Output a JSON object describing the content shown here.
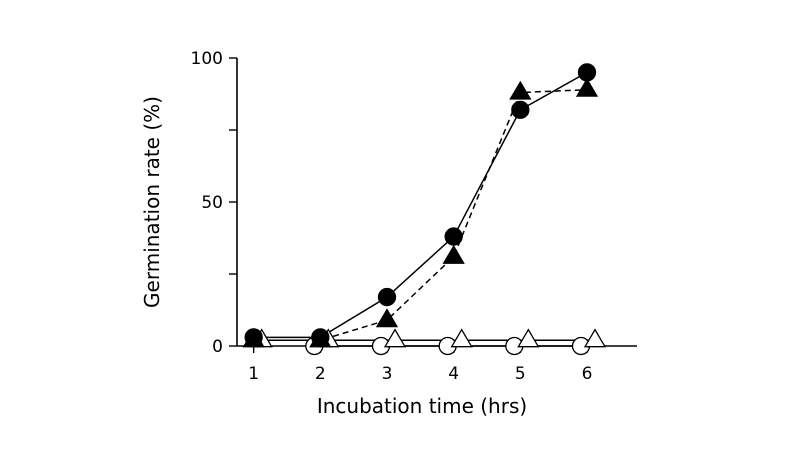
{
  "chart_data": {
    "type": "scatter",
    "xlabel": "Incubation time (hrs)",
    "ylabel": "Germination rate (%)",
    "xlim": [
      0.75,
      6.75
    ],
    "ylim": [
      0,
      100
    ],
    "x_ticks": [
      "1",
      "2",
      "3",
      "4",
      "5",
      "6"
    ],
    "y_ticks": [
      "0",
      "50",
      "100"
    ],
    "grid": false,
    "series": [
      {
        "marker": "filled-circle",
        "line": "solid",
        "color": "#000000",
        "points": [
          [
            1,
            3
          ],
          [
            2,
            3
          ],
          [
            3,
            17
          ],
          [
            4,
            38
          ],
          [
            5,
            82
          ],
          [
            6,
            95
          ]
        ]
      },
      {
        "marker": "filled-triangle",
        "line": "dashed",
        "color": "#000000",
        "points": [
          [
            1,
            2
          ],
          [
            2,
            2
          ],
          [
            3,
            9
          ],
          [
            4,
            31
          ],
          [
            5,
            88
          ],
          [
            6,
            89
          ]
        ]
      },
      {
        "marker": "open-circle",
        "line": "solid",
        "color": "#000000",
        "points": [
          [
            2,
            0
          ],
          [
            3,
            0
          ],
          [
            4,
            0
          ],
          [
            5,
            0
          ],
          [
            6,
            0
          ]
        ]
      },
      {
        "marker": "open-triangle",
        "line": "solid",
        "color": "#000000",
        "points": [
          [
            1,
            2
          ],
          [
            2,
            2
          ],
          [
            3,
            2
          ],
          [
            4,
            2
          ],
          [
            5,
            2
          ],
          [
            6,
            2
          ]
        ]
      }
    ]
  }
}
